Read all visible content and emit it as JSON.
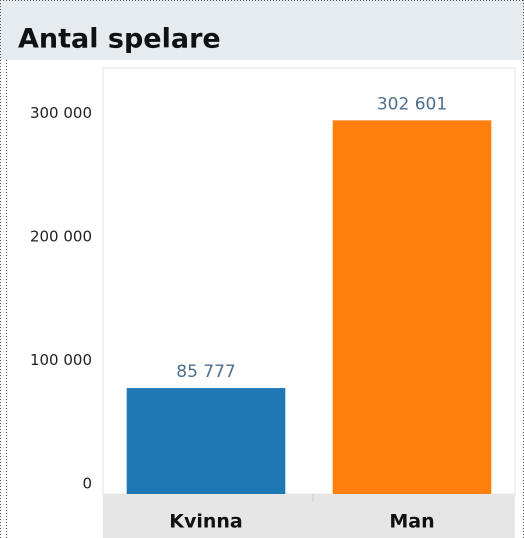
{
  "chart_data": {
    "type": "bar",
    "title": "Antal spelare",
    "categories": [
      "Kvinna",
      "Man"
    ],
    "values": [
      85777,
      302601
    ],
    "value_labels": [
      "85 777",
      "302 601"
    ],
    "colors": [
      "#1f77b4",
      "#ff7f0e"
    ],
    "ylim": [
      0,
      345000
    ],
    "yticks": [
      0,
      {
        "value": 100000,
        "label": "100 000"
      },
      {
        "value": 200000,
        "label": "200 000"
      },
      {
        "value": 300000,
        "label": "300 000"
      }
    ],
    "grid": false
  }
}
